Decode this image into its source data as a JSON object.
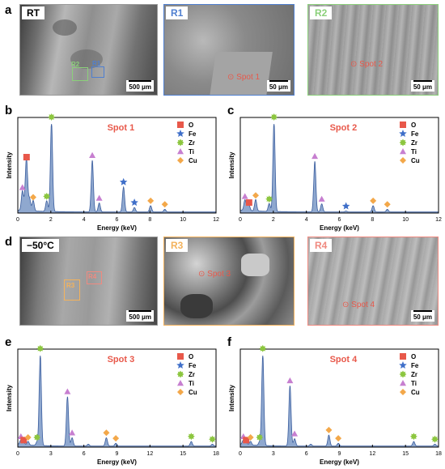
{
  "panels": {
    "a": "a",
    "b": "b",
    "c": "c",
    "d": "d",
    "e": "e",
    "f": "f"
  },
  "sem_images": [
    {
      "id": "rt",
      "tag": "RT",
      "scale": "500 μm",
      "border": "#9a9a9a",
      "tag_color": "#000000"
    },
    {
      "id": "r1",
      "tag": "R1",
      "scale": "50 μm",
      "border": "#4f7fd0",
      "tag_color": "#4f7fd0",
      "spot": "⊙ Spot 1"
    },
    {
      "id": "r2",
      "tag": "R2",
      "scale": "50 μm",
      "border": "#8bd07a",
      "tag_color": "#8bd07a",
      "spot": "⊙ Spot 2"
    },
    {
      "id": "m50",
      "tag": "−50°C",
      "scale": "500 μm",
      "border": "#9a9a9a",
      "tag_color": "#000000"
    },
    {
      "id": "r3",
      "tag": "R3",
      "scale": "",
      "border": "#f3b25c",
      "tag_color": "#f3b25c",
      "spot": "⊙ Spot 3"
    },
    {
      "id": "r4",
      "tag": "R4",
      "scale": "50 μm",
      "border": "#f08a80",
      "tag_color": "#f08a80",
      "spot": "⊙ Spot 4"
    }
  ],
  "rois": {
    "rt_r1": {
      "label": "R1",
      "color": "#4f7fd0"
    },
    "rt_r2": {
      "label": "R2",
      "color": "#8bd07a"
    },
    "m50_r3": {
      "label": "R3",
      "color": "#f3b25c"
    },
    "m50_r4": {
      "label": "R4",
      "color": "#f08a80"
    }
  },
  "colors": {
    "O": "#e8584a",
    "Fe": "#3f6fc9",
    "Zr": "#8cc63f",
    "Ti": "#c77fd0",
    "Cu": "#f3a84a",
    "fill": "#8fa8cf",
    "stroke": "#3a5d9e",
    "title": "#e8584a"
  },
  "chart_data": [
    {
      "type": "area",
      "id": "b",
      "title": "Spot 1",
      "xlabel": "Energy (keV)",
      "ylabel": "Intensity",
      "xlim": [
        0,
        12
      ],
      "xticks": [
        0,
        2,
        4,
        6,
        8,
        10,
        12
      ],
      "legend": [
        "O",
        "Fe",
        "Zr",
        "Ti",
        "Cu"
      ],
      "peaks": [
        {
          "x": 0.28,
          "h": 0.22
        },
        {
          "x": 0.45,
          "h": 0.1
        },
        {
          "x": 0.53,
          "h": 0.55
        },
        {
          "x": 0.71,
          "h": 0.14
        },
        {
          "x": 0.93,
          "h": 0.12
        },
        {
          "x": 1.75,
          "h": 0.12
        },
        {
          "x": 2.04,
          "h": 1.0
        },
        {
          "x": 4.51,
          "h": 0.58
        },
        {
          "x": 4.93,
          "h": 0.1
        },
        {
          "x": 6.4,
          "h": 0.28
        },
        {
          "x": 7.06,
          "h": 0.05
        },
        {
          "x": 8.04,
          "h": 0.07
        },
        {
          "x": 8.9,
          "h": 0.03
        }
      ],
      "markers": [
        {
          "el": "Ti",
          "x": 0.28,
          "y": 0.26
        },
        {
          "el": "O",
          "x": 0.53,
          "y": 0.6
        },
        {
          "el": "Cu",
          "x": 0.93,
          "y": 0.15
        },
        {
          "el": "Zr",
          "x": 1.75,
          "y": 0.16
        },
        {
          "el": "Zr",
          "x": 2.04,
          "y": 1.05
        },
        {
          "el": "Ti",
          "x": 4.51,
          "y": 0.62
        },
        {
          "el": "Ti",
          "x": 4.93,
          "y": 0.14
        },
        {
          "el": "Fe",
          "x": 6.4,
          "y": 0.32
        },
        {
          "el": "Fe",
          "x": 7.06,
          "y": 0.09
        },
        {
          "el": "Cu",
          "x": 8.04,
          "y": 0.11
        },
        {
          "el": "Cu",
          "x": 8.9,
          "y": 0.07
        }
      ]
    },
    {
      "type": "area",
      "id": "c",
      "title": "Spot 2",
      "xlabel": "Energy (keV)",
      "ylabel": "Intensity",
      "xlim": [
        0,
        12
      ],
      "xticks": [
        0,
        2,
        4,
        6,
        8,
        10,
        12
      ],
      "legend": [
        "O",
        "Fe",
        "Zr",
        "Ti",
        "Cu"
      ],
      "peaks": [
        {
          "x": 0.28,
          "h": 0.12
        },
        {
          "x": 0.45,
          "h": 0.05
        },
        {
          "x": 0.53,
          "h": 0.05
        },
        {
          "x": 0.93,
          "h": 0.13
        },
        {
          "x": 1.75,
          "h": 0.09
        },
        {
          "x": 2.04,
          "h": 1.0
        },
        {
          "x": 4.51,
          "h": 0.57
        },
        {
          "x": 4.93,
          "h": 0.09
        },
        {
          "x": 6.4,
          "h": 0.01
        },
        {
          "x": 8.04,
          "h": 0.07
        },
        {
          "x": 8.9,
          "h": 0.03
        }
      ],
      "markers": [
        {
          "el": "Ti",
          "x": 0.28,
          "y": 0.16
        },
        {
          "el": "O",
          "x": 0.53,
          "y": 0.09
        },
        {
          "el": "Cu",
          "x": 0.93,
          "y": 0.17
        },
        {
          "el": "Zr",
          "x": 1.75,
          "y": 0.13
        },
        {
          "el": "Zr",
          "x": 2.04,
          "y": 1.05
        },
        {
          "el": "Ti",
          "x": 4.51,
          "y": 0.61
        },
        {
          "el": "Ti",
          "x": 4.93,
          "y": 0.13
        },
        {
          "el": "Fe",
          "x": 6.4,
          "y": 0.05
        },
        {
          "el": "Cu",
          "x": 8.04,
          "y": 0.11
        },
        {
          "el": "Cu",
          "x": 8.9,
          "y": 0.07
        }
      ]
    },
    {
      "type": "area",
      "id": "e",
      "title": "Spot 3",
      "xlabel": "Energy (keV)",
      "ylabel": "Intensity",
      "xlim": [
        0,
        18
      ],
      "xticks": [
        0,
        3,
        6,
        9,
        12,
        15,
        18
      ],
      "legend": [
        "O",
        "Fe",
        "Zr",
        "Ti",
        "Cu"
      ],
      "peaks": [
        {
          "x": 0.28,
          "h": 0.05
        },
        {
          "x": 0.53,
          "h": 0.03
        },
        {
          "x": 0.93,
          "h": 0.04
        },
        {
          "x": 1.75,
          "h": 0.04
        },
        {
          "x": 2.04,
          "h": 1.0
        },
        {
          "x": 4.51,
          "h": 0.54
        },
        {
          "x": 4.93,
          "h": 0.09
        },
        {
          "x": 6.4,
          "h": 0.02
        },
        {
          "x": 8.04,
          "h": 0.09
        },
        {
          "x": 8.9,
          "h": 0.03
        },
        {
          "x": 15.75,
          "h": 0.05
        },
        {
          "x": 17.67,
          "h": 0.02
        }
      ],
      "markers": [
        {
          "el": "Ti",
          "x": 0.28,
          "y": 0.09
        },
        {
          "el": "O",
          "x": 0.53,
          "y": 0.05
        },
        {
          "el": "Cu",
          "x": 0.93,
          "y": 0.08
        },
        {
          "el": "Zr",
          "x": 1.75,
          "y": 0.08
        },
        {
          "el": "Zr",
          "x": 2.04,
          "y": 1.05
        },
        {
          "el": "Ti",
          "x": 4.51,
          "y": 0.58
        },
        {
          "el": "Ti",
          "x": 4.93,
          "y": 0.13
        },
        {
          "el": "Cu",
          "x": 8.04,
          "y": 0.13
        },
        {
          "el": "Cu",
          "x": 8.9,
          "y": 0.07
        },
        {
          "el": "Zr",
          "x": 15.75,
          "y": 0.09
        },
        {
          "el": "Zr",
          "x": 17.67,
          "y": 0.06
        }
      ]
    },
    {
      "type": "area",
      "id": "f",
      "title": "Spot 4",
      "xlabel": "Energy (keV)",
      "ylabel": "Intensity",
      "xlim": [
        0,
        18
      ],
      "xticks": [
        0,
        3,
        6,
        9,
        12,
        15,
        18
      ],
      "legend": [
        "O",
        "Fe",
        "Zr",
        "Ti",
        "Cu"
      ],
      "peaks": [
        {
          "x": 0.28,
          "h": 0.05
        },
        {
          "x": 0.53,
          "h": 0.03
        },
        {
          "x": 0.93,
          "h": 0.04
        },
        {
          "x": 1.75,
          "h": 0.04
        },
        {
          "x": 2.04,
          "h": 1.0
        },
        {
          "x": 4.51,
          "h": 0.66
        },
        {
          "x": 4.93,
          "h": 0.08
        },
        {
          "x": 6.4,
          "h": 0.02
        },
        {
          "x": 8.04,
          "h": 0.12
        },
        {
          "x": 8.9,
          "h": 0.03
        },
        {
          "x": 15.75,
          "h": 0.05
        },
        {
          "x": 17.67,
          "h": 0.02
        }
      ],
      "markers": [
        {
          "el": "Ti",
          "x": 0.28,
          "y": 0.09
        },
        {
          "el": "O",
          "x": 0.53,
          "y": 0.05
        },
        {
          "el": "Cu",
          "x": 0.93,
          "y": 0.08
        },
        {
          "el": "Zr",
          "x": 1.75,
          "y": 0.08
        },
        {
          "el": "Zr",
          "x": 2.04,
          "y": 1.05
        },
        {
          "el": "Ti",
          "x": 4.51,
          "y": 0.7
        },
        {
          "el": "Ti",
          "x": 4.93,
          "y": 0.12
        },
        {
          "el": "Cu",
          "x": 8.04,
          "y": 0.16
        },
        {
          "el": "Cu",
          "x": 8.9,
          "y": 0.07
        },
        {
          "el": "Zr",
          "x": 15.75,
          "y": 0.09
        },
        {
          "el": "Zr",
          "x": 17.67,
          "y": 0.06
        }
      ]
    }
  ]
}
